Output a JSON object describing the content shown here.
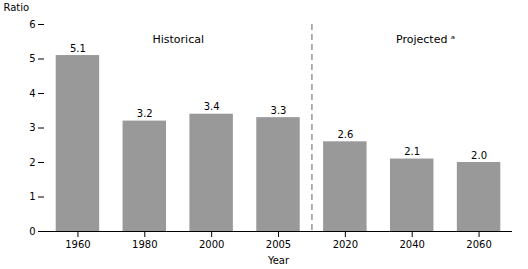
{
  "chart_data": {
    "type": "bar",
    "categories": [
      "1960",
      "1980",
      "2000",
      "2005",
      "2020",
      "2040",
      "2060"
    ],
    "values": [
      5.1,
      3.2,
      3.4,
      3.3,
      2.6,
      2.1,
      2.0
    ],
    "value_labels": [
      "5.1",
      "3.2",
      "3.4",
      "3.3",
      "2.6",
      "2.1",
      "2.0"
    ],
    "data_labels": true,
    "color": "#999999",
    "xlabel": "Year",
    "ylabel": "Ratio",
    "ylim": [
      0,
      6
    ],
    "yticks": [
      0,
      1,
      2,
      3,
      4,
      5,
      6
    ],
    "grid": false,
    "annotations": [
      {
        "text": "Historical",
        "x": 1.5,
        "y": 5.7
      },
      {
        "text": "Projected ᵃ",
        "x": 5.2,
        "y": 5.7
      },
      {
        "type": "vline",
        "x": 3.5,
        "line_style": "dashed",
        "color": "#888888"
      }
    ]
  }
}
